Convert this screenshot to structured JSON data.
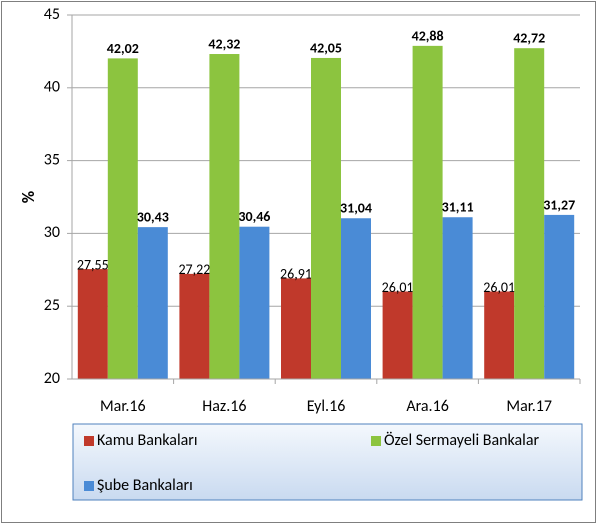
{
  "chart_data": {
    "type": "bar",
    "y_label": "%",
    "categories": [
      "Mar.16",
      "Haz.16",
      "Eyl.16",
      "Ara.16",
      "Mar.17"
    ],
    "series": [
      {
        "name": "Kamu Bankaları",
        "color": "#c0392b",
        "label_color": "#c00000",
        "values": [
          27.55,
          27.22,
          26.91,
          26.01,
          26.01
        ],
        "value_labels": [
          "27,55",
          "27,22",
          "26,91",
          "26,01",
          "26,01"
        ]
      },
      {
        "name": "Özel Sermayeli Bankalar",
        "color": "#8cc43f",
        "label_color": "#92d050",
        "values": [
          42.02,
          42.32,
          42.05,
          42.88,
          42.72
        ],
        "value_labels": [
          "42,02",
          "42,32",
          "42,05",
          "42,88",
          "42,72"
        ]
      },
      {
        "name": "Şube Bankaları",
        "color": "#4a8bd6",
        "label_color": "#2e75b6",
        "values": [
          30.43,
          30.46,
          31.04,
          31.11,
          31.27
        ],
        "value_labels": [
          "30,43",
          "30,46",
          "31,04",
          "31,11",
          "31,27"
        ]
      }
    ],
    "ylim": [
      20,
      45
    ],
    "yticks": [
      20,
      25,
      30,
      35,
      40,
      45
    ],
    "grid": true,
    "legend": "bottom"
  }
}
